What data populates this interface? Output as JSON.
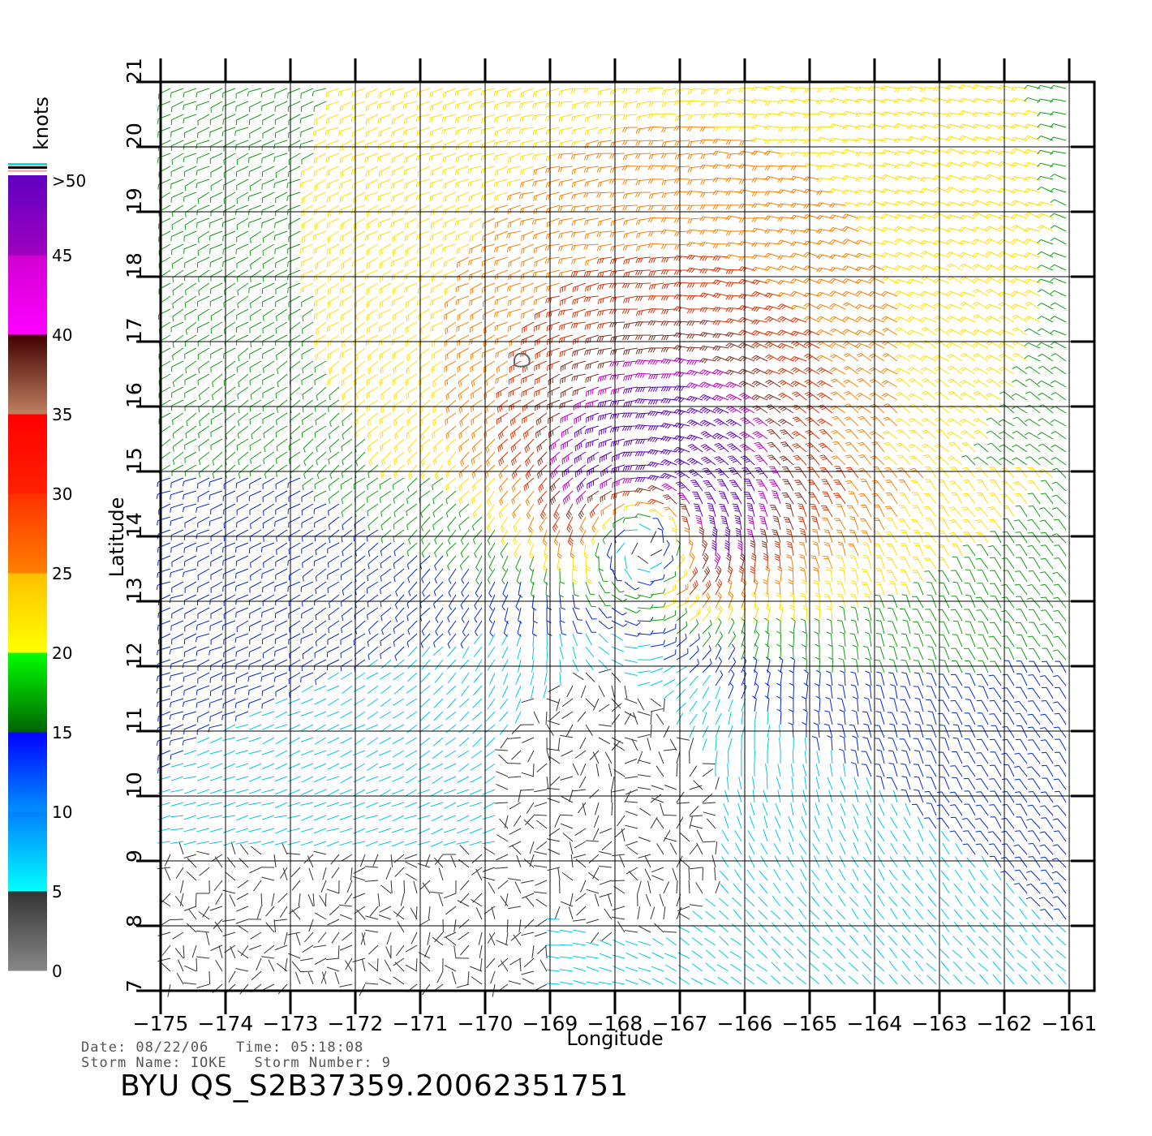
{
  "legend": {
    "unit": "knots",
    "ticks": [
      "0",
      "5",
      "10",
      "15",
      "20",
      "25",
      "30",
      "35",
      "40",
      "45",
      ">50"
    ],
    "colors": {
      "0-5": [
        "#888888",
        "#333333"
      ],
      "5-10": [
        "#00ffff",
        "#0080ff"
      ],
      "10-15": [
        "#0090ff",
        "#0000ff"
      ],
      "15-20": [
        "#006400",
        "#00ff00"
      ],
      "20-25": [
        "#ffff00",
        "#ffc000"
      ],
      "25-30": [
        "#ff8000",
        "#ff3000"
      ],
      "30-35": [
        "#ff2000",
        "#ff0000"
      ],
      "35-40": [
        "#c08060",
        "#400000"
      ],
      "40-45": [
        "#ff00ff",
        "#d000d0"
      ],
      "45-50": [
        "#a000c0",
        "#6000c0"
      ]
    },
    "top_stripes": [
      "#00e0e0",
      "#000000",
      "#ffb0b0"
    ]
  },
  "map": {
    "xlabel": "Longitude",
    "ylabel": "Latitude",
    "lon_ticks": [
      "−175",
      "−174",
      "−173",
      "−172",
      "−171",
      "−170",
      "−169",
      "−168",
      "−167",
      "−166",
      "−165",
      "−164",
      "−163",
      "−162",
      "−161"
    ],
    "lat_ticks": [
      "7",
      "8",
      "9",
      "10",
      "11",
      "12",
      "13",
      "14",
      "15",
      "16",
      "17",
      "18",
      "19",
      "20",
      "21"
    ],
    "lon_range": [
      -175,
      -161
    ],
    "lat_range": [
      7,
      21
    ],
    "storm_center": {
      "lon": -167.5,
      "lat": 14.2
    },
    "wind_field": "cyclonic vortex; strongest winds (>40 knots) north and east of center, calm winds (<5 knots) to the southwest",
    "island": {
      "lon": -169.5,
      "lat": 16.7
    }
  },
  "footer": {
    "line1": "Date: 08/22/06   Time: 05:18:08",
    "line2": "Storm Name: IOKE   Storm Number: 9",
    "product": "BYU QS_S2B37359.20062351751"
  }
}
